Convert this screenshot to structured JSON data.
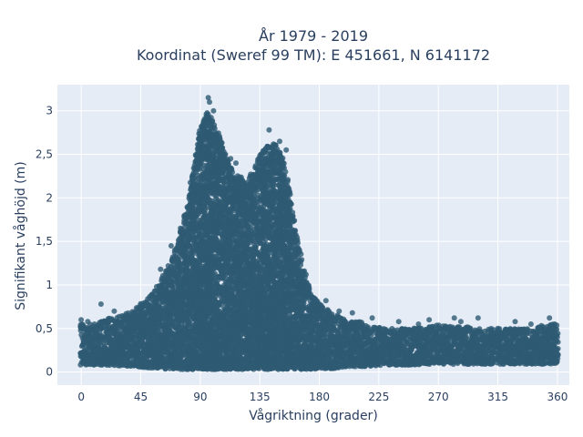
{
  "chart_data": {
    "type": "scatter",
    "title_lines": [
      "År 1979 - 2019",
      "Koordinat (Sweref 99 TM): E 451661, N 6141172"
    ],
    "xlabel": "Vågriktning (grader)",
    "ylabel": "Signifikant våghöjd (m)",
    "xlim": [
      -18,
      369
    ],
    "ylim": [
      -0.15,
      3.3
    ],
    "xticks": [
      0,
      45,
      90,
      135,
      180,
      225,
      270,
      315,
      360
    ],
    "xtick_labels": [
      "0",
      "45",
      "90",
      "135",
      "180",
      "225",
      "270",
      "315",
      "360"
    ],
    "yticks": [
      0,
      0.5,
      1,
      1.5,
      2,
      2.5,
      3
    ],
    "ytick_labels": [
      "0",
      "0,5",
      "1",
      "1,5",
      "2",
      "2,5",
      "3"
    ],
    "grid": true,
    "background_color": "#e5ecf6",
    "marker_color": "#2e5a73",
    "envelope": {
      "x": [
        0,
        10,
        20,
        30,
        40,
        50,
        60,
        70,
        80,
        85,
        90,
        95,
        100,
        105,
        110,
        115,
        120,
        125,
        130,
        135,
        140,
        145,
        150,
        155,
        160,
        165,
        170,
        175,
        180,
        190,
        200,
        210,
        220,
        230,
        240,
        250,
        260,
        270,
        280,
        290,
        300,
        310,
        320,
        330,
        340,
        350,
        360
      ],
      "lower": [
        0.08,
        0.08,
        0.08,
        0.07,
        0.06,
        0.05,
        0.04,
        0.03,
        0.03,
        0.03,
        0.03,
        0.03,
        0.03,
        0.03,
        0.03,
        0.03,
        0.03,
        0.03,
        0.03,
        0.03,
        0.03,
        0.03,
        0.03,
        0.03,
        0.03,
        0.03,
        0.03,
        0.03,
        0.04,
        0.04,
        0.05,
        0.06,
        0.07,
        0.08,
        0.08,
        0.08,
        0.09,
        0.09,
        0.09,
        0.09,
        0.09,
        0.09,
        0.09,
        0.09,
        0.09,
        0.09,
        0.1
      ],
      "upper": [
        0.55,
        0.55,
        0.62,
        0.65,
        0.72,
        0.85,
        1.05,
        1.35,
        1.9,
        2.4,
        2.85,
        3.0,
        2.88,
        2.7,
        2.45,
        2.3,
        2.25,
        2.2,
        2.3,
        2.5,
        2.6,
        2.65,
        2.58,
        2.3,
        1.85,
        1.4,
        1.08,
        0.9,
        0.8,
        0.68,
        0.6,
        0.58,
        0.52,
        0.5,
        0.5,
        0.5,
        0.52,
        0.55,
        0.52,
        0.52,
        0.5,
        0.5,
        0.5,
        0.5,
        0.5,
        0.55,
        0.55
      ]
    },
    "outliers": [
      {
        "x": 96,
        "y": 3.15
      },
      {
        "x": 97,
        "y": 3.1
      },
      {
        "x": 100,
        "y": 3.0
      },
      {
        "x": 142,
        "y": 2.78
      },
      {
        "x": 150,
        "y": 2.65
      },
      {
        "x": 136,
        "y": 2.5
      },
      {
        "x": 113,
        "y": 2.45
      },
      {
        "x": 117,
        "y": 2.4
      },
      {
        "x": 15,
        "y": 0.78
      },
      {
        "x": 25,
        "y": 0.7
      },
      {
        "x": 57,
        "y": 0.98
      },
      {
        "x": 68,
        "y": 1.45
      },
      {
        "x": 60,
        "y": 1.18
      },
      {
        "x": 75,
        "y": 1.65
      },
      {
        "x": 155,
        "y": 2.55
      },
      {
        "x": 165,
        "y": 1.28
      },
      {
        "x": 170,
        "y": 1.12
      },
      {
        "x": 185,
        "y": 0.82
      },
      {
        "x": 195,
        "y": 0.7
      },
      {
        "x": 205,
        "y": 0.68
      },
      {
        "x": 220,
        "y": 0.62
      },
      {
        "x": 240,
        "y": 0.58
      },
      {
        "x": 255,
        "y": 0.55
      },
      {
        "x": 263,
        "y": 0.6
      },
      {
        "x": 282,
        "y": 0.62
      },
      {
        "x": 287,
        "y": 0.58
      },
      {
        "x": 300,
        "y": 0.62
      },
      {
        "x": 315,
        "y": 0.5
      },
      {
        "x": 328,
        "y": 0.58
      },
      {
        "x": 340,
        "y": 0.55
      },
      {
        "x": 354,
        "y": 0.62
      },
      {
        "x": 358,
        "y": 0.55
      },
      {
        "x": 0,
        "y": 0.6
      },
      {
        "x": 5,
        "y": 0.58
      },
      {
        "x": 10,
        "y": 0.55
      }
    ]
  }
}
